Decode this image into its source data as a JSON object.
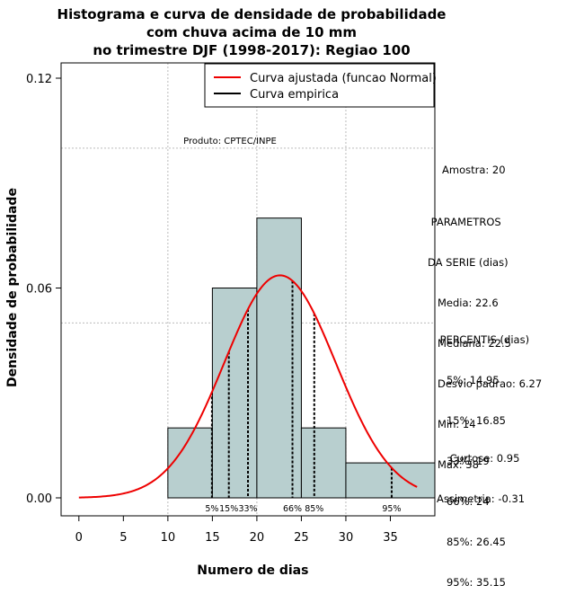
{
  "chart_data": {
    "type": "histogram",
    "title": [
      "Histograma e curva de densidade de probabilidade",
      "com chuva acima de 10 mm",
      "no trimestre DJF (1998-2017): Regiao 100"
    ],
    "xlabel": "Numero de dias",
    "ylabel": "Densidade de probabilidade",
    "xlim": [
      -2,
      40
    ],
    "ylim": [
      0,
      0.12
    ],
    "xticks": [
      0,
      5,
      10,
      15,
      20,
      25,
      30,
      35
    ],
    "yticks": [
      0.0,
      0.06,
      0.12
    ],
    "ytick_labels": [
      "0.00",
      "0.06",
      "0.12"
    ],
    "grid_x": [
      10,
      20,
      30
    ],
    "grid_y": [
      0.05,
      0.1
    ],
    "bins": [
      {
        "x0": 10,
        "x1": 15,
        "density": 0.02
      },
      {
        "x0": 15,
        "x1": 20,
        "density": 0.06
      },
      {
        "x0": 20,
        "x1": 25,
        "density": 0.08
      },
      {
        "x0": 25,
        "x1": 30,
        "density": 0.02
      },
      {
        "x0": 30,
        "x1": 40,
        "density": 0.01
      }
    ],
    "bar_color": "#b8cfcf",
    "normal_fit": {
      "mean": 22.6,
      "sd": 6.27,
      "x_from": 0,
      "x_to": 38,
      "color": "#ee0000"
    },
    "percentile_markers": [
      {
        "label": "5%",
        "x": 14.95
      },
      {
        "label": "15%",
        "x": 16.85
      },
      {
        "label": "33%",
        "x": 19
      },
      {
        "label": "66%",
        "x": 24
      },
      {
        "label": "85%",
        "x": 26.45
      },
      {
        "label": "95%",
        "x": 35.15
      }
    ],
    "legend": {
      "position": "top-right",
      "entries": [
        {
          "label": "Curva ajustada (funcao Normal)",
          "color": "#ee0000"
        },
        {
          "label": "Curva empirica",
          "color": "#000000"
        }
      ]
    },
    "annotation": "Produto: CPTEC/INPE"
  },
  "stats_panel": {
    "amostra": "Amostra: 20",
    "parametros": [
      " PARAMETROS",
      "DA SERIE (dias)",
      "   Media: 22.6",
      "   Mediana: 22.5",
      "   Desvio padrao: 6.27",
      "   Min: 14",
      "   Max: 38"
    ],
    "percentis": [
      " PERCENTIS (dias)",
      "   5%: 14.95",
      "   15%: 16.85",
      "   33%: 19",
      "   66%: 24",
      "   85%: 26.45",
      "   95%: 35.15"
    ],
    "forma": [
      "    Curtose: 0.95",
      "Assimetria: -0.31"
    ]
  }
}
